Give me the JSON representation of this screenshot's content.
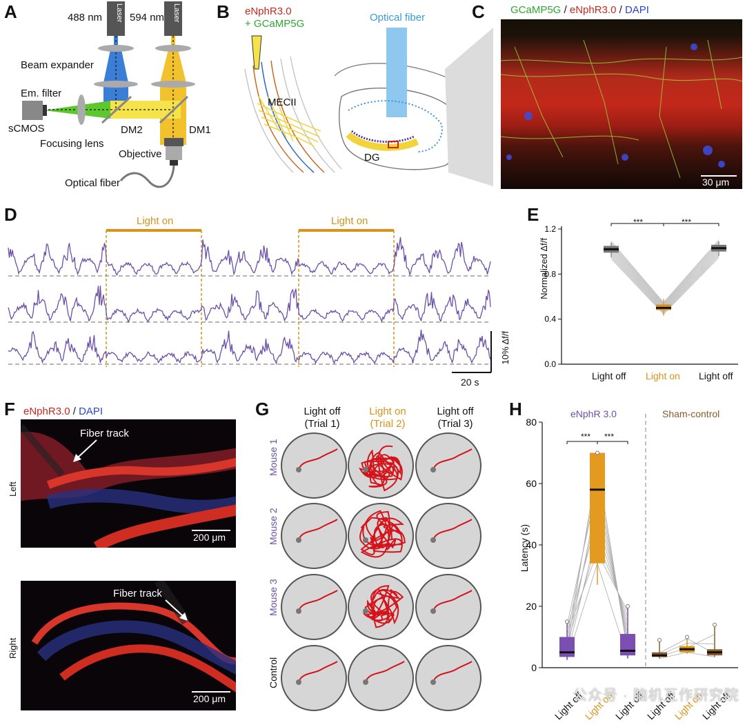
{
  "panel_letters": {
    "a": "A",
    "b": "B",
    "c": "C",
    "d": "D",
    "e": "E",
    "f": "F",
    "g": "G",
    "h": "H"
  },
  "panelA": {
    "laser1_wavelength": "488 nm",
    "laser2_wavelength": "594 nm",
    "laser_label": "Laser",
    "beam_expander": "Beam expander",
    "em_filter": "Em. filter",
    "scmos": "sCMOS",
    "dm2": "DM2",
    "dm1": "DM1",
    "focusing_lens": "Focusing lens",
    "objective": "Objective",
    "optical_fiber": "Optical fiber",
    "colors": {
      "blue": "#3a7fd5",
      "yellow": "#f2c12e",
      "green": "#5cc82e"
    }
  },
  "panelB": {
    "construct_red": "eNphR3.0",
    "construct_green": "+ GCaMP5G",
    "optical_fiber": "Optical fiber",
    "mecii": "MECII",
    "dg": "DG"
  },
  "panelC": {
    "title_green": "GCaMP5G",
    "title_sep1": " / ",
    "title_red": "eNphR3.0",
    "title_sep2": " / ",
    "title_blue": "DAPI",
    "scale": "30 μm"
  },
  "panelD": {
    "light_on_1": "Light on",
    "light_on_2": "Light on",
    "scale_y": "10% Δf/f",
    "scale_x": "20 s",
    "trace_color": "#6a4fa8",
    "light_color": "#d9921a"
  },
  "panelE": {
    "ylabel": "Normalized Δf/f",
    "yticks": [
      "0.0",
      "0.4",
      "0.8",
      "1.2"
    ],
    "xlabels": [
      "Light off",
      "Light on",
      "Light off"
    ],
    "sig1": "***",
    "sig2": "***"
  },
  "panelF": {
    "title_red": "eNphR3.0",
    "title_sep": " / ",
    "title_blue": "DAPI",
    "fiber_track_1": "Fiber track",
    "fiber_track_2": "Fiber track",
    "left": "Left",
    "right": "Right",
    "scale_1": "200 μm",
    "scale_2": "200 μm"
  },
  "panelG": {
    "col1_line1": "Light off",
    "col1_line2": "(Trial 1)",
    "col2_line1": "Light on",
    "col2_line2": "(Trial 2)",
    "col3_line1": "Light off",
    "col3_line2": "(Trial 3)",
    "rows": [
      "Mouse 1",
      "Mouse 2",
      "Mouse 3",
      "Control"
    ]
  },
  "panelH": {
    "group1": "eNphR 3.0",
    "group2": "Sham-control",
    "ylabel": "Latency (s)",
    "yticks": [
      "0",
      "20",
      "40",
      "60",
      "80"
    ],
    "xlabels": [
      "Light off",
      "Light on",
      "Light off",
      "Light off",
      "Light on",
      "Light off"
    ],
    "sig1": "***",
    "sig2": "***"
  },
  "watermark": "公众号 · 脑机互作研究院",
  "chart_data": [
    {
      "type": "box",
      "title": "Panel E",
      "ylabel": "Normalized Δf/f",
      "ylim": [
        0,
        1.2
      ],
      "categories": [
        "Light off",
        "Light on",
        "Light off"
      ],
      "medians": [
        1.02,
        0.5,
        1.03
      ],
      "q1": [
        0.99,
        0.48,
        1.0
      ],
      "q3": [
        1.05,
        0.53,
        1.06
      ],
      "whisker_low": [
        0.95,
        0.43,
        0.96
      ],
      "whisker_high": [
        1.08,
        0.58,
        1.09
      ]
    },
    {
      "type": "box",
      "title": "Panel H",
      "ylabel": "Latency (s)",
      "ylim": [
        0,
        80
      ],
      "series": [
        {
          "name": "eNphR 3.0",
          "categories": [
            "Light off",
            "Light on",
            "Light off"
          ],
          "medians": [
            5,
            58,
            5.5
          ],
          "q1": [
            3.5,
            34,
            4
          ],
          "q3": [
            10,
            70,
            11
          ],
          "whisker_low": [
            2.5,
            27,
            3
          ],
          "whisker_high": [
            15,
            70,
            20
          ]
        },
        {
          "name": "Sham-control",
          "categories": [
            "Light off",
            "Light on",
            "Light off"
          ],
          "medians": [
            4,
            6,
            5
          ],
          "q1": [
            3.5,
            5,
            4
          ],
          "q3": [
            5,
            7,
            6
          ],
          "whisker_low": [
            3,
            4.5,
            3.5
          ],
          "whisker_high": [
            9,
            10,
            14
          ]
        }
      ]
    }
  ]
}
